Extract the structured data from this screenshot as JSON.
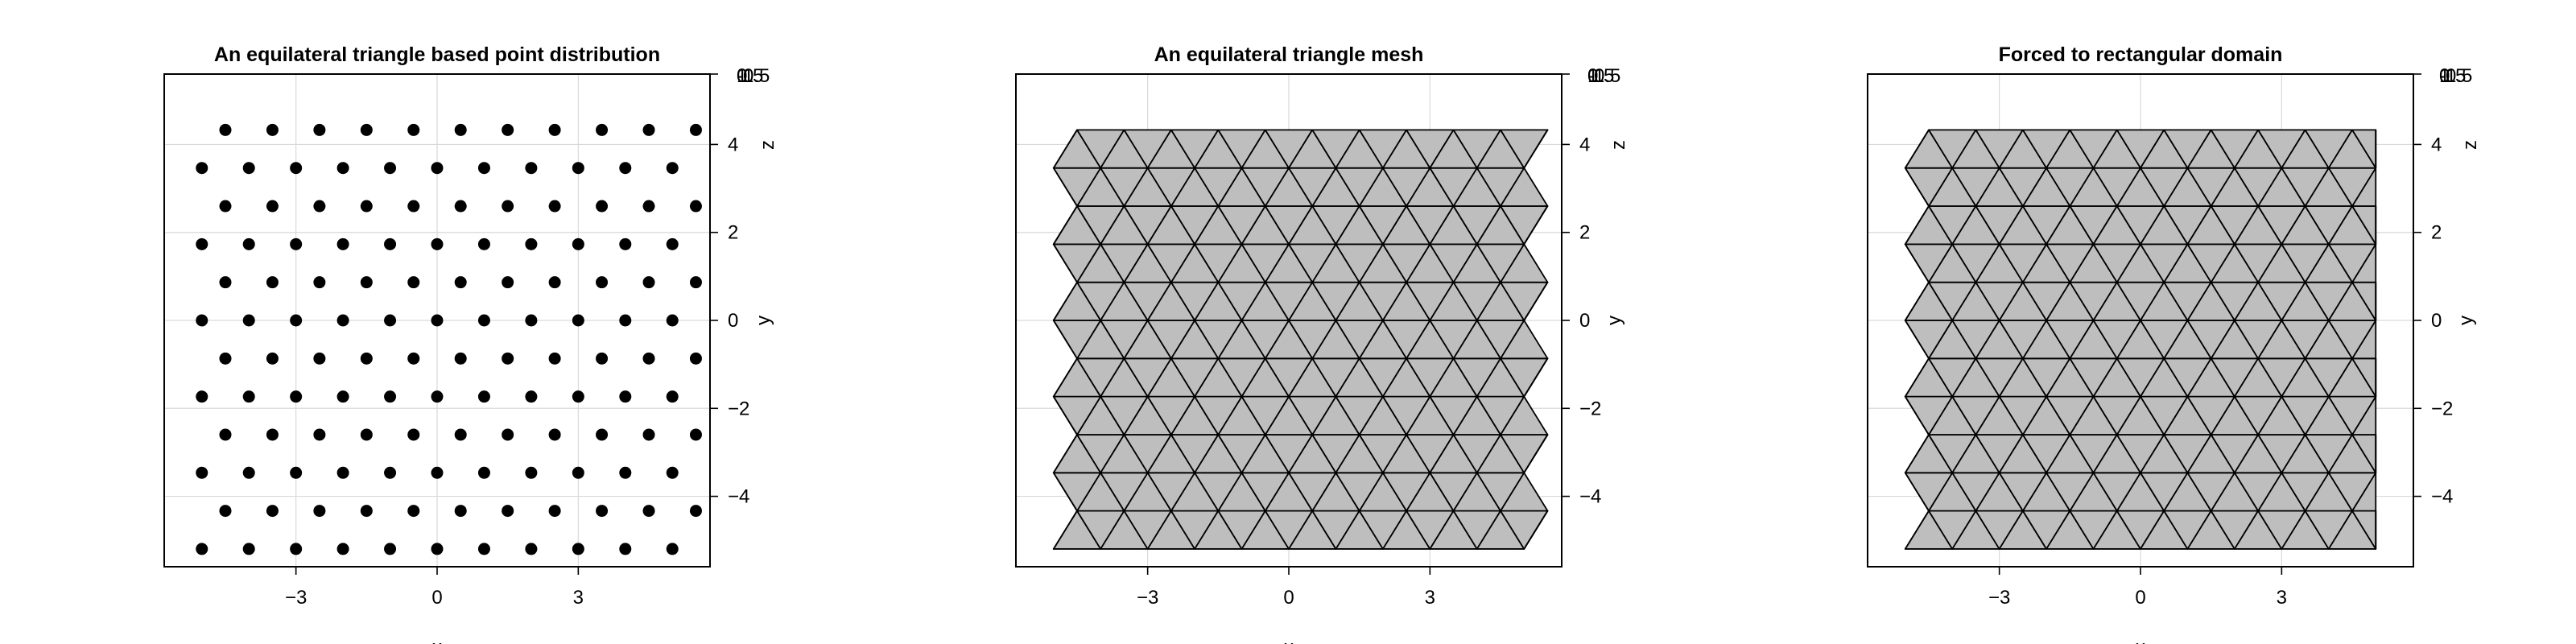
{
  "chart_data": [
    {
      "type": "scatter",
      "title": "An equilateral triangle based point distribution",
      "xlabel": "x",
      "ylabel": "y",
      "zlabel": "z",
      "xlim": [
        -5.8,
        5.8
      ],
      "ylim": [
        -5.6,
        5.6
      ],
      "xticks": [
        -3,
        0,
        3
      ],
      "yticks": [
        -4,
        -2,
        0,
        2,
        4
      ],
      "z_tick_labels": [
        "1",
        "0.5",
        "0",
        "-0.5",
        "-1"
      ],
      "grid": true,
      "lattice": {
        "spacing": 1.0,
        "row_height": 0.8660254,
        "rows": 12,
        "row_start_y": -5.196152,
        "even_row_x_start": -5.0,
        "odd_row_x_start": -4.5,
        "points_per_row": 11,
        "z": 0
      }
    },
    {
      "type": "mesh",
      "title": "An equilateral triangle mesh",
      "xlabel": "x",
      "ylabel": "y",
      "zlabel": "z",
      "xlim": [
        -5.8,
        5.8
      ],
      "ylim": [
        -5.6,
        5.6
      ],
      "xticks": [
        -3,
        0,
        3
      ],
      "yticks": [
        -4,
        -2,
        0,
        2,
        4
      ],
      "z_tick_labels": [
        "1",
        "0.5",
        "0",
        "-0.5",
        "-1"
      ],
      "grid": true,
      "fill_color": "#bebebe",
      "edge_color": "#000000",
      "lattice": {
        "spacing": 1.0,
        "row_height": 0.8660254,
        "rows": 12,
        "row_start_y": -5.196152,
        "even_row_x_start": -5.0,
        "odd_row_x_start": -4.5,
        "points_per_row": 11,
        "z": 0
      },
      "forced_rectangular": false
    },
    {
      "type": "mesh",
      "title": "Forced to rectangular domain",
      "xlabel": "x",
      "ylabel": "y",
      "zlabel": "z",
      "xlim": [
        -5.8,
        5.8
      ],
      "ylim": [
        -5.6,
        5.6
      ],
      "xticks": [
        -3,
        0,
        3
      ],
      "yticks": [
        -4,
        -2,
        0,
        2,
        4
      ],
      "z_tick_labels": [
        "1",
        "0.5",
        "0",
        "-0.5",
        "-1"
      ],
      "grid": true,
      "fill_color": "#bebebe",
      "edge_color": "#000000",
      "lattice": {
        "spacing": 1.0,
        "row_height": 0.8660254,
        "rows": 12,
        "row_start_y": -5.196152,
        "even_row_x_start": -5.0,
        "odd_row_x_start": -4.5,
        "points_per_row": 11,
        "z": 0
      },
      "forced_rectangular": true,
      "x_bounds": [
        -5.0,
        5.0
      ]
    }
  ]
}
